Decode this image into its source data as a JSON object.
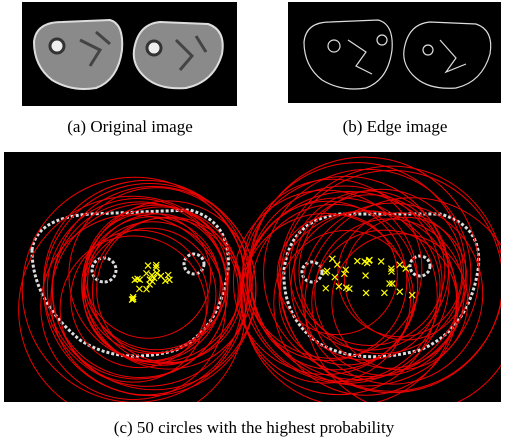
{
  "panels": [
    {
      "caption": "(a) Original image"
    },
    {
      "caption": "(b) Edge image"
    },
    {
      "caption": "(c) 50 circles with the highest probability"
    }
  ]
}
